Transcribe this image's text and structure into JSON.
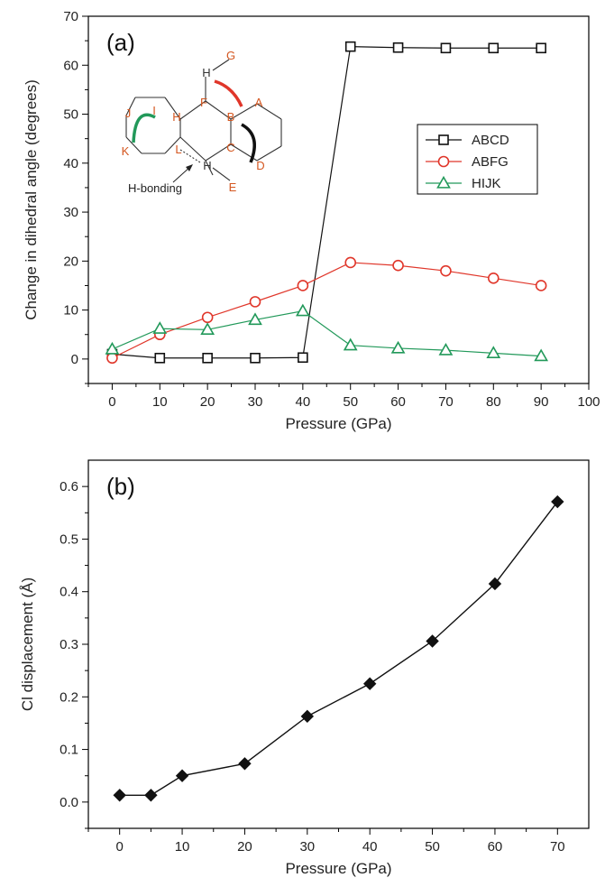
{
  "chart_data": [
    {
      "type": "line",
      "panel_label": "(a)",
      "xlabel": "Pressure (GPa)",
      "ylabel": "Change in dihedral angle (degrees)",
      "xlim": [
        -5,
        100
      ],
      "ylim": [
        -5,
        70
      ],
      "xticks": [
        0,
        10,
        20,
        30,
        40,
        50,
        60,
        70,
        80,
        90,
        100
      ],
      "yticks": [
        0,
        10,
        20,
        30,
        40,
        50,
        60,
        70
      ],
      "legend_position": "center-right",
      "series": [
        {
          "name": "ABCD",
          "color": "#111111",
          "marker": "square",
          "x": [
            0,
            10,
            20,
            30,
            40,
            50,
            60,
            70,
            80,
            90
          ],
          "y": [
            1.0,
            0.2,
            0.2,
            0.2,
            0.3,
            63.8,
            63.6,
            63.5,
            63.5,
            63.5
          ]
        },
        {
          "name": "ABFG",
          "color": "#e0362a",
          "marker": "circle",
          "x": [
            0,
            10,
            20,
            30,
            40,
            50,
            60,
            70,
            80,
            90
          ],
          "y": [
            0.2,
            5.0,
            8.5,
            11.7,
            15.0,
            19.7,
            19.1,
            18.0,
            16.5,
            15.0
          ]
        },
        {
          "name": "HIJK",
          "color": "#22995a",
          "marker": "triangle",
          "x": [
            0,
            10,
            20,
            30,
            40,
            50,
            60,
            70,
            80,
            90
          ],
          "y": [
            2.0,
            6.2,
            6.0,
            8.0,
            9.8,
            2.8,
            2.2,
            1.8,
            1.2,
            0.6
          ]
        }
      ],
      "inset": {
        "labels": [
          "G",
          "H",
          "F",
          "A",
          "B",
          "I",
          "J",
          "H",
          "K",
          "L",
          "C",
          "D",
          "H",
          "E"
        ],
        "annotation": "H-bonding"
      }
    },
    {
      "type": "line",
      "panel_label": "(b)",
      "xlabel": "Pressure (GPa)",
      "ylabel": "Cl displacement   (Å)",
      "xlim": [
        -5,
        75
      ],
      "ylim": [
        -0.05,
        0.65
      ],
      "xticks": [
        0,
        10,
        20,
        30,
        40,
        50,
        60,
        70
      ],
      "yticks": [
        0.0,
        0.1,
        0.2,
        0.3,
        0.4,
        0.5,
        0.6
      ],
      "series": [
        {
          "color": "#111111",
          "marker": "diamond",
          "x": [
            0,
            5,
            10,
            20,
            30,
            40,
            50,
            60,
            70
          ],
          "y": [
            0.013,
            0.013,
            0.05,
            0.073,
            0.163,
            0.225,
            0.306,
            0.415,
            0.571
          ]
        }
      ]
    }
  ]
}
